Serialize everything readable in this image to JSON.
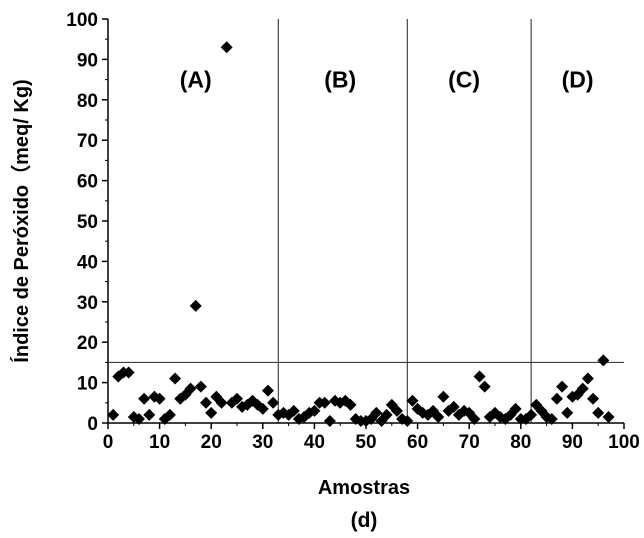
{
  "chart_data": {
    "type": "scatter",
    "title": "",
    "caption": "(d)",
    "xlabel": "Amostras",
    "ylabel": "Índice de Peróxido（meq/ Kg)",
    "xlim": [
      0,
      100
    ],
    "ylim": [
      0,
      100
    ],
    "xticks": [
      "0",
      "10",
      "20",
      "30",
      "40",
      "50",
      "60",
      "70",
      "80",
      "90",
      "100"
    ],
    "yticks": [
      "0",
      "10",
      "20",
      "30",
      "40",
      "50",
      "60",
      "70",
      "80",
      "90",
      "100"
    ],
    "grid": false,
    "reference_line_y": 15,
    "region_dividers_x": [
      33,
      58,
      82
    ],
    "regions": [
      {
        "label": "(A)",
        "x_center": 17
      },
      {
        "label": "(B)",
        "x_center": 45
      },
      {
        "label": "(C)",
        "x_center": 69
      },
      {
        "label": "(D)",
        "x_center": 91
      }
    ],
    "marker": "diamond",
    "marker_color": "#000000",
    "x": [
      1,
      2,
      3,
      4,
      5,
      6,
      7,
      8,
      9,
      10,
      11,
      12,
      13,
      14,
      15,
      16,
      17,
      18,
      19,
      20,
      21,
      22,
      23,
      24,
      25,
      26,
      27,
      28,
      29,
      30,
      31,
      32,
      33,
      34,
      35,
      36,
      37,
      38,
      39,
      40,
      41,
      42,
      43,
      44,
      45,
      46,
      47,
      48,
      49,
      50,
      51,
      52,
      53,
      54,
      55,
      56,
      57,
      58,
      59,
      60,
      61,
      62,
      63,
      64,
      65,
      66,
      67,
      68,
      69,
      70,
      71,
      72,
      73,
      74,
      75,
      76,
      77,
      78,
      79,
      80,
      81,
      82,
      83,
      84,
      85,
      86,
      87,
      88,
      89,
      90,
      91,
      92,
      93,
      94,
      95,
      96,
      97
    ],
    "y": [
      2,
      11.5,
      12.5,
      12.5,
      1.5,
      1,
      6,
      2,
      6.5,
      6,
      1,
      2,
      11,
      6,
      7,
      8.5,
      29,
      9,
      5,
      2.5,
      6.5,
      5,
      93,
      5,
      6,
      4,
      4.5,
      5.5,
      4.5,
      3.5,
      8,
      5,
      2,
      2.5,
      2,
      3,
      1,
      1.5,
      2.5,
      3,
      5,
      5,
      0.5,
      5.5,
      5,
      5.5,
      4.5,
      1,
      0.5,
      0.5,
      1,
      2.5,
      0.5,
      2,
      4.5,
      3,
      1,
      0.5,
      5.5,
      3.5,
      2.5,
      2,
      3,
      1.5,
      6.5,
      3,
      4,
      2,
      3,
      2.5,
      1,
      11.5,
      9,
      1.5,
      2.5,
      1.5,
      1,
      2,
      3.5,
      1,
      1,
      2,
      4.5,
      3,
      1.5,
      1,
      6,
      9,
      2.5,
      6.5,
      7,
      8.5,
      11,
      6,
      2.5,
      15.5,
      1.5
    ]
  }
}
